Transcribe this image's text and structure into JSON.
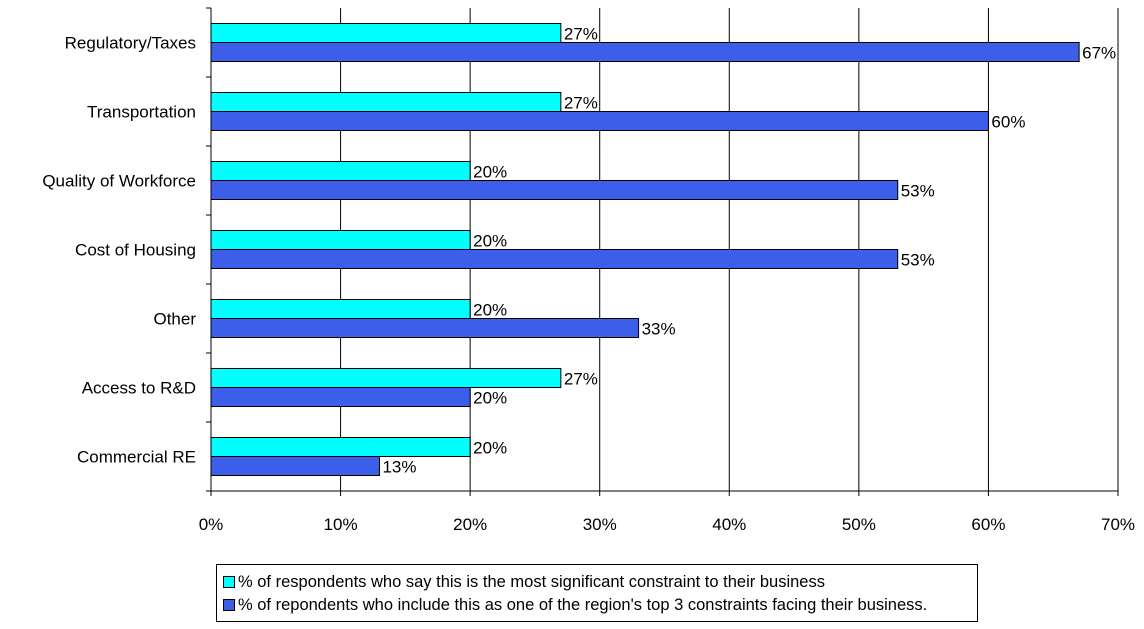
{
  "chart_data": {
    "type": "bar",
    "orientation": "horizontal",
    "categories": [
      "Regulatory/Taxes",
      "Transportation",
      "Quality of Workforce",
      "Cost of Housing",
      "Other",
      "Access to R&D",
      "Commercial RE"
    ],
    "series": [
      {
        "name": "% of respondents who say this is the most significant constraint to their business",
        "color": "#00ffff",
        "values": [
          27,
          27,
          20,
          20,
          20,
          27,
          20
        ],
        "data_labels": [
          "27%",
          "27%",
          "20%",
          "20%",
          "20%",
          "27%",
          "20%"
        ]
      },
      {
        "name": "% of repondents who include this as one of the region's top 3 constraints facing their business.",
        "color": "#3d5ee8",
        "values": [
          67,
          60,
          53,
          53,
          33,
          20,
          13
        ],
        "data_labels": [
          "67%",
          "60%",
          "53%",
          "53%",
          "33%",
          "20%",
          "13%"
        ]
      }
    ],
    "xlim": [
      0,
      70
    ],
    "x_ticks": [
      "0%",
      "10%",
      "20%",
      "30%",
      "40%",
      "50%",
      "60%",
      "70%"
    ],
    "grid": "vertical",
    "legend_position": "bottom"
  }
}
